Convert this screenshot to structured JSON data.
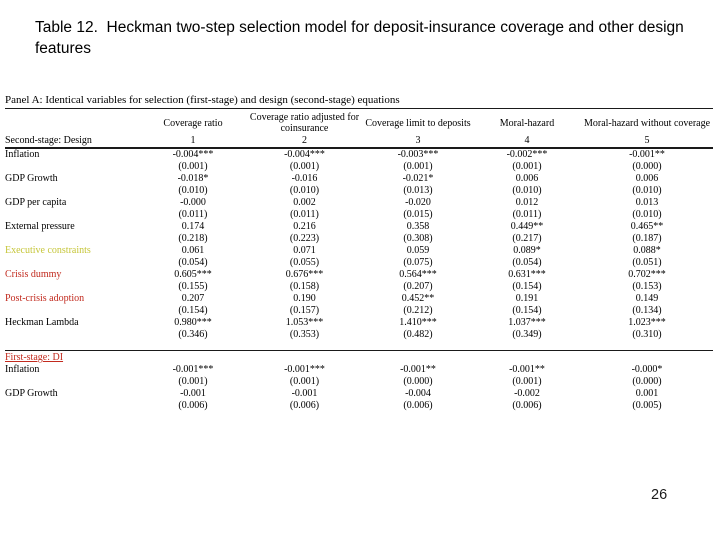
{
  "slide": {
    "title": "Table 12.  Heckman two-step selection model for deposit-insurance coverage and other design features",
    "page_number": "26"
  },
  "table": {
    "panel_heading": "Panel A: Identical variables for selection (first-stage) and design (second-stage) equations",
    "columns": [
      {
        "title": "Coverage ratio",
        "number": "1"
      },
      {
        "title": "Coverage ratio adjusted for coinsurance",
        "number": "2"
      },
      {
        "title": "Coverage limit to deposits",
        "number": "3"
      },
      {
        "title": "Moral-hazard",
        "number": "4"
      },
      {
        "title": "Moral-hazard without coverage",
        "number": "5"
      }
    ],
    "second_stage": {
      "label": "Second-stage: Design",
      "rows": [
        {
          "label": "Inflation",
          "color": "#000000",
          "coef": [
            "-0.004***",
            "-0.004***",
            "-0.003***",
            "-0.002***",
            "-0.001**"
          ],
          "se": [
            "(0.001)",
            "(0.001)",
            "(0.001)",
            "(0.001)",
            "(0.000)"
          ]
        },
        {
          "label": "GDP Growth",
          "color": "#000000",
          "coef": [
            "-0.018*",
            "-0.016",
            "-0.021*",
            "0.006",
            "0.006"
          ],
          "se": [
            "(0.010)",
            "(0.010)",
            "(0.013)",
            "(0.010)",
            "(0.010)"
          ]
        },
        {
          "label": "GDP per capita",
          "color": "#000000",
          "coef": [
            "-0.000",
            "0.002",
            "-0.020",
            "0.012",
            "0.013"
          ],
          "se": [
            "(0.011)",
            "(0.011)",
            "(0.015)",
            "(0.011)",
            "(0.010)"
          ]
        },
        {
          "label": "External pressure",
          "color": "#000000",
          "coef": [
            "0.174",
            "0.216",
            "0.358",
            "0.449**",
            "0.465**"
          ],
          "se": [
            "(0.218)",
            "(0.223)",
            "(0.308)",
            "(0.217)",
            "(0.187)"
          ]
        },
        {
          "label": "Executive constraints",
          "color": "#c6c63a",
          "coef": [
            "0.061",
            "0.071",
            "0.059",
            "0.089*",
            "0.088*"
          ],
          "se": [
            "(0.054)",
            "(0.055)",
            "(0.075)",
            "(0.054)",
            "(0.051)"
          ]
        },
        {
          "label": "Crisis dummy",
          "color": "#c22a1e",
          "coef": [
            "0.605***",
            "0.676***",
            "0.564***",
            "0.631***",
            "0.702***"
          ],
          "se": [
            "(0.155)",
            "(0.158)",
            "(0.207)",
            "(0.154)",
            "(0.153)"
          ]
        },
        {
          "label": "Post-crisis adoption",
          "color": "#c22a1e",
          "coef": [
            "0.207",
            "0.190",
            "0.452**",
            "0.191",
            "0.149"
          ],
          "se": [
            "(0.154)",
            "(0.157)",
            "(0.212)",
            "(0.154)",
            "(0.134)"
          ]
        },
        {
          "label": "Heckman Lambda",
          "color": "#000000",
          "coef": [
            "0.980***",
            "1.053***",
            "1.410***",
            "1.037***",
            "1.023***"
          ],
          "se": [
            "(0.346)",
            "(0.353)",
            "(0.482)",
            "(0.349)",
            "(0.310)"
          ]
        }
      ]
    },
    "first_stage": {
      "label": "First-stage: DI",
      "label_color": "#c22a1e",
      "rows": [
        {
          "label": "Inflation",
          "color": "#000000",
          "coef": [
            "-0.001***",
            "-0.001***",
            "-0.001**",
            "-0.001**",
            "-0.000*"
          ],
          "se": [
            "(0.001)",
            "(0.001)",
            "(0.000)",
            "(0.001)",
            "(0.000)"
          ]
        },
        {
          "label": "GDP Growth",
          "color": "#000000",
          "coef": [
            "-0.001",
            "-0.001",
            "-0.004",
            "-0.002",
            "0.001"
          ],
          "se": [
            "(0.006)",
            "(0.006)",
            "(0.006)",
            "(0.006)",
            "(0.005)"
          ]
        }
      ]
    }
  }
}
